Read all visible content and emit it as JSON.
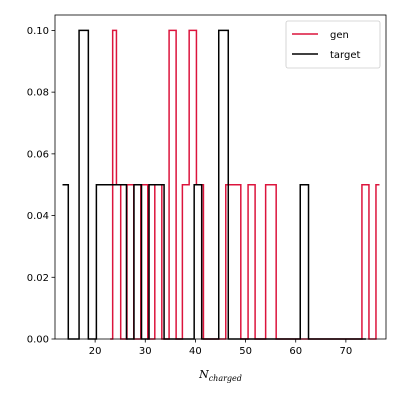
{
  "chart_data": {
    "type": "line",
    "drawstyle": "steps-mid",
    "title": "",
    "xlabel": "N_charged",
    "xlabel_main": "N",
    "xlabel_sub": "charged",
    "ylabel": "",
    "xlim": [
      12.0,
      78.0
    ],
    "ylim": [
      0.0,
      0.105
    ],
    "xticks": [
      20,
      30,
      40,
      50,
      60,
      70
    ],
    "yticks": [
      0.0,
      0.02,
      0.04,
      0.06,
      0.08,
      0.1
    ],
    "xtick_labels": [
      "20",
      "30",
      "40",
      "50",
      "60",
      "70"
    ],
    "ytick_labels": [
      "0.00",
      "0.02",
      "0.04",
      "0.06",
      "0.08",
      "0.10"
    ],
    "grid": false,
    "legend": {
      "position": "top-right",
      "entries": [
        {
          "label": "gen",
          "color": "#dc143c"
        },
        {
          "label": "target",
          "color": "#000000"
        }
      ]
    },
    "series": [
      {
        "name": "gen",
        "color": "#dc143c",
        "x": [
          23.0,
          24.0,
          24.5,
          25.7,
          27.0,
          28.4,
          29.8,
          31.2,
          32.6,
          34.0,
          35.5,
          36.8,
          38.0,
          39.5,
          40.9,
          42.3,
          43.8,
          48.3,
          49.8,
          51.2,
          52.6,
          55.4,
          56.8,
          58.2,
          72.5,
          73.9,
          75.3,
          76.7
        ],
        "y": [
          0.0,
          0.1,
          0.05,
          0.0,
          0.05,
          0.0,
          0.05,
          0.0,
          0.05,
          0.0,
          0.1,
          0.0,
          0.05,
          0.1,
          0.05,
          0.0,
          0.0,
          0.05,
          0.0,
          0.05,
          0.0,
          0.05,
          0.0,
          0.0,
          0.0,
          0.05,
          0.0,
          0.05
        ]
      },
      {
        "name": "target",
        "color": "#000000",
        "x": [
          13.5,
          15.8,
          17.8,
          19.5,
          21.0,
          22.5,
          24.0,
          25.5,
          27.0,
          28.5,
          30.0,
          31.5,
          33.0,
          34.5,
          36.0,
          37.5,
          39.0,
          40.5,
          42.0,
          43.5,
          45.8,
          47.3,
          48.8,
          60.0,
          61.8,
          63.3,
          72.0,
          74.0
        ],
        "y": [
          0.05,
          0.0,
          0.1,
          0.0,
          0.05,
          0.05,
          0.05,
          0.05,
          0.0,
          0.05,
          0.0,
          0.05,
          0.05,
          0.0,
          0.0,
          0.0,
          0.0,
          0.05,
          0.0,
          0.0,
          0.1,
          0.0,
          0.0,
          0.0,
          0.05,
          0.0,
          0.0,
          0.0
        ]
      }
    ]
  }
}
